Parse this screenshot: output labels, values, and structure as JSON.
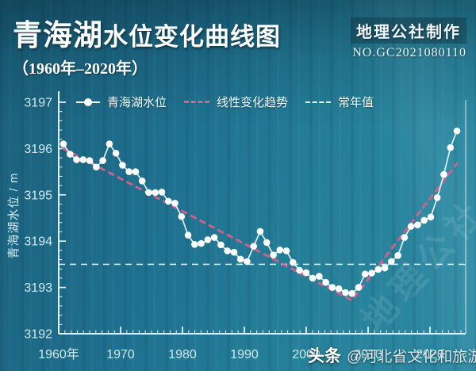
{
  "header": {
    "title_main": "青海湖",
    "title_rest": "水位变化曲线图",
    "subtitle": "（1960年–2020年）",
    "credit_name": "地理公社制作",
    "credit_number": "NO.GC2021080110"
  },
  "watermarks": {
    "diagonal": "地理公社",
    "footer_brand": "头条",
    "footer_handle": "@河北省文化和旅游厅"
  },
  "colors": {
    "background_teal": "#24809c",
    "line_white": "#ffffff",
    "trend_pink": "#d95f8d",
    "normal_dash": "#eef8fa",
    "axis": "#e4f2f6"
  },
  "chart_data": {
    "type": "line",
    "title": "青海湖水位变化曲线图（1960年–2020年）",
    "xlabel": "",
    "ylabel": "青海湖水位 / m",
    "x_start": 1960,
    "x_end": 2020,
    "x_tick_labels": [
      "1960年",
      "1970",
      "1980",
      "1990",
      "2000",
      "2010",
      "2020"
    ],
    "y_ticks": [
      3192,
      3193,
      3194,
      3195,
      3196,
      3197
    ],
    "ylim": [
      3192,
      3197
    ],
    "grid": false,
    "legend_position": "top",
    "series": [
      {
        "name": "青海湖水位",
        "style": "line_with_markers",
        "color": "#ffffff",
        "values": [
          3196.1,
          3195.88,
          3195.76,
          3195.76,
          3195.74,
          3195.6,
          3195.74,
          3196.1,
          3195.9,
          3195.64,
          3195.5,
          3195.5,
          3195.3,
          3195.05,
          3195.05,
          3195.06,
          3194.86,
          3194.82,
          3194.53,
          3194.13,
          3193.93,
          3193.95,
          3194.03,
          3194.08,
          3193.92,
          3193.79,
          3193.76,
          3193.61,
          3193.56,
          3193.89,
          3194.21,
          3193.97,
          3193.7,
          3193.81,
          3193.79,
          3193.54,
          3193.37,
          3193.32,
          3193.2,
          3193.24,
          3193.11,
          3193.0,
          3192.97,
          3192.89,
          3192.87,
          3193.0,
          3193.29,
          3193.31,
          3193.39,
          3193.42,
          3193.56,
          3193.69,
          3194.08,
          3194.32,
          3194.35,
          3194.45,
          3194.52,
          3194.94,
          3195.44,
          3196.02,
          3196.38
        ]
      },
      {
        "name": "线性变化趋势",
        "style": "dashed_trend",
        "color": "#d95f8d",
        "points": [
          [
            1960,
            3196.0
          ],
          [
            2004,
            3192.72
          ],
          [
            2020,
            3195.68
          ]
        ]
      },
      {
        "name": "常年值",
        "style": "dashed_horizontal",
        "color": "#eef8fa",
        "value": 3193.5
      }
    ]
  }
}
